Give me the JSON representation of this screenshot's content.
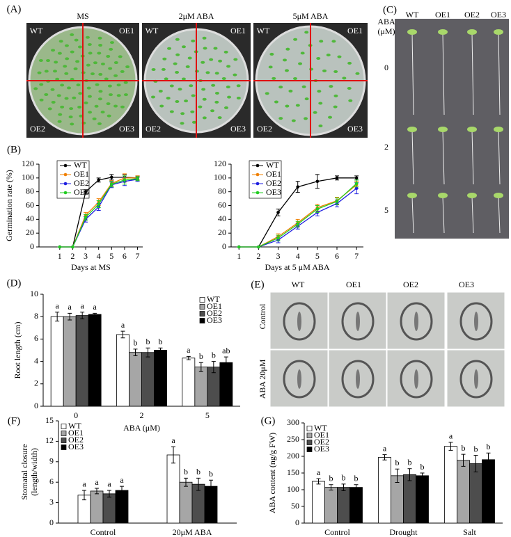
{
  "photos": {
    "A": {
      "label": "(A)",
      "headers": [
        "MS",
        "2μM ABA",
        "5μM ABA"
      ],
      "plate_labels": [
        "WT",
        "OE1",
        "OE2",
        "OE3"
      ]
    },
    "C": {
      "label": "(C)",
      "axis_title": [
        "ABA",
        "(μM)"
      ],
      "columns": [
        "WT",
        "OE1",
        "OE2",
        "OE3"
      ],
      "rows": [
        "0",
        "2",
        "5"
      ]
    },
    "E": {
      "label": "(E)",
      "columns": [
        "WT",
        "OE1",
        "OE2",
        "OE3"
      ],
      "rows": [
        "Control",
        "ABA  20μM"
      ]
    }
  },
  "chart_data": [
    {
      "type": "line",
      "panel": "(B)",
      "ylabel": "Germination rate (%)",
      "xlabel": "Days at MS",
      "legend": "upper left",
      "x": [
        1,
        2,
        3,
        4,
        5,
        6,
        7
      ],
      "xlim": [
        -0.6,
        7.4
      ],
      "xticks": [
        1,
        2,
        3,
        4,
        5,
        6,
        7
      ],
      "ylim": [
        0,
        120
      ],
      "yticks": [
        0,
        20,
        40,
        60,
        80,
        100,
        120
      ],
      "series": [
        {
          "name": "WT",
          "color": "#000000",
          "values": [
            0,
            0,
            80,
            97,
            101,
            101,
            100
          ],
          "errors": [
            0,
            0,
            3,
            3,
            4,
            4,
            3
          ]
        },
        {
          "name": "OE1",
          "color": "#f08000",
          "values": [
            0,
            0,
            46,
            65,
            92,
            100,
            100
          ],
          "errors": [
            0,
            0,
            4,
            5,
            4,
            6,
            3
          ]
        },
        {
          "name": "OE2",
          "color": "#1f1fe0",
          "values": [
            0,
            0,
            40,
            58,
            90,
            95,
            98
          ],
          "errors": [
            0,
            0,
            4,
            5,
            4,
            6,
            3
          ]
        },
        {
          "name": "OE3",
          "color": "#22cc22",
          "values": [
            0,
            0,
            43,
            62,
            91,
            97,
            99
          ],
          "errors": [
            0,
            0,
            4,
            5,
            4,
            6,
            3
          ]
        }
      ]
    },
    {
      "type": "line",
      "xlabel": "Days at 5 μM ABA",
      "legend": "upper left",
      "x": [
        1,
        2,
        3,
        4,
        5,
        6,
        7
      ],
      "xlim": [
        0.6,
        7.35
      ],
      "xticks": [
        1,
        2,
        3,
        4,
        5,
        6,
        7
      ],
      "ylim": [
        0,
        120
      ],
      "yticks": [
        0,
        20,
        40,
        60,
        80,
        100,
        120
      ],
      "series": [
        {
          "name": "WT",
          "color": "#000000",
          "values": [
            0,
            0,
            50,
            87,
            95,
            100,
            100
          ],
          "errors": [
            0,
            0,
            5,
            8,
            10,
            3,
            3
          ]
        },
        {
          "name": "OE1",
          "color": "#f08000",
          "values": [
            0,
            0,
            15,
            35,
            57,
            67,
            90
          ],
          "errors": [
            0,
            0,
            4,
            5,
            5,
            5,
            5
          ]
        },
        {
          "name": "OE2",
          "color": "#1f1fe0",
          "values": [
            0,
            0,
            10,
            30,
            50,
            63,
            85
          ],
          "errors": [
            0,
            0,
            4,
            4,
            5,
            5,
            8
          ]
        },
        {
          "name": "OE3",
          "color": "#22cc22",
          "values": [
            0,
            0,
            13,
            33,
            55,
            66,
            92
          ],
          "errors": [
            0,
            0,
            4,
            4,
            5,
            5,
            5
          ]
        }
      ]
    },
    {
      "type": "bar",
      "panel": "(D)",
      "ylabel": "Root length (cm)",
      "xlabel": "ABA (μM)",
      "legend": "upper right",
      "categories": [
        "0",
        "2",
        "5"
      ],
      "ylim": [
        0,
        10
      ],
      "yticks": [
        0,
        2,
        4,
        6,
        8,
        10
      ],
      "series": [
        {
          "name": "WT",
          "color": "#ffffff",
          "values": [
            8.0,
            6.4,
            4.3
          ],
          "errors": [
            0.4,
            0.3,
            0.15
          ],
          "letters": [
            "a",
            "a",
            "a"
          ]
        },
        {
          "name": "OE1",
          "color": "#a6a6a6",
          "values": [
            8.0,
            4.8,
            3.5
          ],
          "errors": [
            0.3,
            0.3,
            0.4
          ],
          "letters": [
            "a",
            "b",
            "b"
          ]
        },
        {
          "name": "OE2",
          "color": "#4d4d4d",
          "values": [
            8.1,
            4.8,
            3.5
          ],
          "errors": [
            0.3,
            0.4,
            0.5
          ],
          "letters": [
            "a",
            "b",
            "b"
          ]
        },
        {
          "name": "OE3",
          "color": "#000000",
          "values": [
            8.2,
            5.0,
            3.9
          ],
          "errors": [
            0.1,
            0.2,
            0.5
          ],
          "letters": [
            "a",
            "b",
            "ab"
          ]
        }
      ]
    },
    {
      "type": "bar",
      "panel": "(F)",
      "ylabel": [
        "Stomatal closure",
        "(length/width)"
      ],
      "legend": "upper left",
      "categories": [
        "Control",
        "20μM ABA"
      ],
      "ylim": [
        0,
        15
      ],
      "yticks": [
        0,
        3,
        6,
        9,
        12,
        15
      ],
      "series": [
        {
          "name": "WT",
          "color": "#ffffff",
          "values": [
            4.1,
            10.0
          ],
          "errors": [
            0.7,
            1.2
          ],
          "letters": [
            "a",
            "a"
          ]
        },
        {
          "name": "OE1",
          "color": "#a6a6a6",
          "values": [
            4.7,
            6.0
          ],
          "errors": [
            0.4,
            0.6
          ],
          "letters": [
            "a",
            "b"
          ]
        },
        {
          "name": "OE2",
          "color": "#4d4d4d",
          "values": [
            4.3,
            5.7
          ],
          "errors": [
            0.5,
            0.9
          ],
          "letters": [
            "a",
            "b"
          ]
        },
        {
          "name": "OE3",
          "color": "#000000",
          "values": [
            4.8,
            5.4
          ],
          "errors": [
            0.6,
            0.9
          ],
          "letters": [
            "a",
            "b"
          ]
        }
      ]
    },
    {
      "type": "bar",
      "panel": "(G)",
      "ylabel": "ABA content (ng/g  FW)",
      "legend": "upper left",
      "categories": [
        "Control",
        "Drought",
        "Salt"
      ],
      "ylim": [
        0,
        300
      ],
      "yticks": [
        0,
        50,
        100,
        150,
        200,
        250,
        300
      ],
      "series": [
        {
          "name": "WT",
          "color": "#ffffff",
          "values": [
            125,
            197,
            230
          ],
          "errors": [
            8,
            8,
            12
          ],
          "letters": [
            "a",
            "a",
            "a"
          ]
        },
        {
          "name": "OE1",
          "color": "#a6a6a6",
          "values": [
            107,
            142,
            188
          ],
          "errors": [
            8,
            20,
            18
          ],
          "letters": [
            "b",
            "b",
            "b"
          ]
        },
        {
          "name": "OE2",
          "color": "#4d4d4d",
          "values": [
            107,
            145,
            178
          ],
          "errors": [
            10,
            18,
            25
          ],
          "letters": [
            "b",
            "b",
            "b"
          ]
        },
        {
          "name": "OE3",
          "color": "#000000",
          "values": [
            107,
            142,
            190
          ],
          "errors": [
            8,
            8,
            20
          ],
          "letters": [
            "b",
            "b",
            "b"
          ]
        }
      ]
    }
  ]
}
